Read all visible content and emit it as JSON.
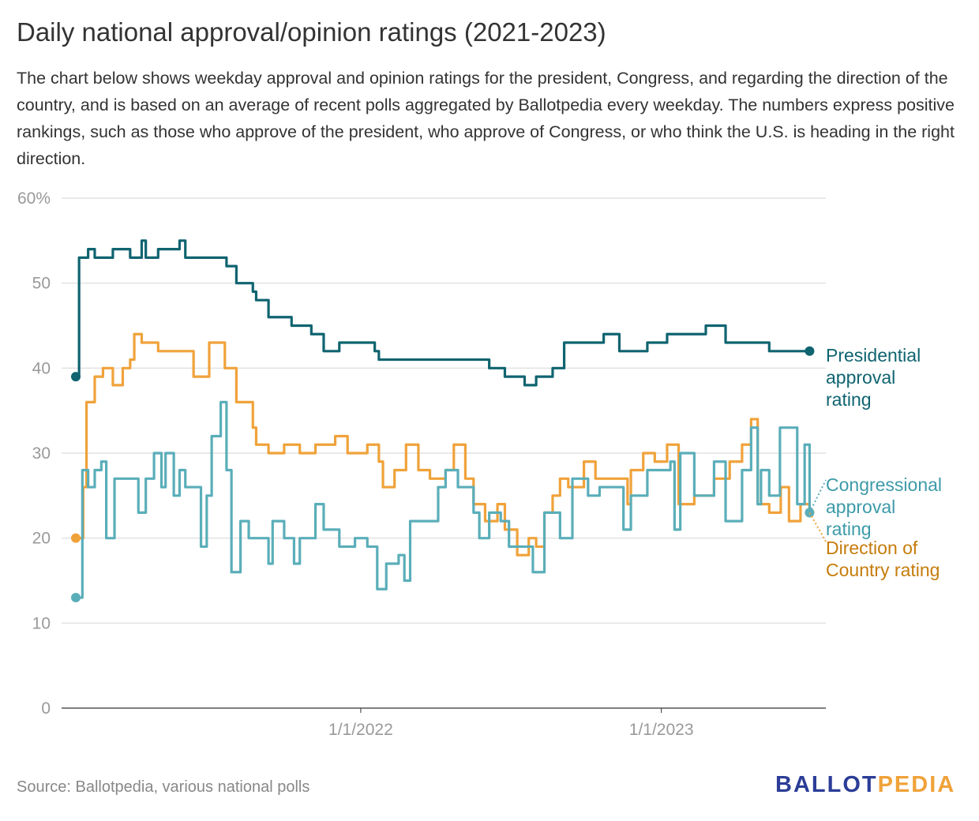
{
  "title": "Daily national approval/opinion ratings (2021-2023)",
  "description": "The chart below shows weekday approval and opinion ratings for the president, Congress, and regarding the direction of the country, and is based on an average of recent polls aggregated by Ballotpedia every weekday. The numbers express positive rankings, such as those who approve of the president, who approve of Congress, or who think the U.S. is heading in the right direction.",
  "source": "Source: Ballotpedia, various national polls",
  "logo": {
    "part1": "BALLOT",
    "part2": "PEDIA",
    "color1": "#2b3d97",
    "color2": "#f0a23a"
  },
  "chart_data": {
    "type": "line",
    "title": "Daily national approval/opinion ratings (2021-2023)",
    "ylim": [
      0,
      60
    ],
    "y_ticks": [
      0,
      10,
      20,
      30,
      40,
      50,
      60
    ],
    "y_tick_labels": [
      "0",
      "10",
      "20",
      "30",
      "40",
      "50",
      "60%"
    ],
    "x_ticks": [
      "2022-01-01",
      "2023-01-01"
    ],
    "x_tick_labels": [
      "1/1/2022",
      "1/1/2023"
    ],
    "grid": true,
    "legend": "inline-right",
    "series": [
      {
        "name": "Presidential approval rating",
        "label_lines": [
          "Presidential",
          "approval",
          "rating"
        ],
        "color": "#0f6470",
        "label_color": "#0f6470",
        "points": [
          [
            "2021-01-20",
            39
          ],
          [
            "2021-01-24",
            53
          ],
          [
            "2021-02-04",
            54
          ],
          [
            "2021-02-12",
            53
          ],
          [
            "2021-03-06",
            54
          ],
          [
            "2021-03-27",
            53
          ],
          [
            "2021-04-10",
            55
          ],
          [
            "2021-04-15",
            53
          ],
          [
            "2021-04-30",
            54
          ],
          [
            "2021-05-26",
            55
          ],
          [
            "2021-06-02",
            53
          ],
          [
            "2021-06-21",
            53
          ],
          [
            "2021-07-15",
            53
          ],
          [
            "2021-07-22",
            52
          ],
          [
            "2021-08-03",
            50
          ],
          [
            "2021-08-23",
            49
          ],
          [
            "2021-08-27",
            48
          ],
          [
            "2021-09-11",
            46
          ],
          [
            "2021-09-30",
            46
          ],
          [
            "2021-10-09",
            45
          ],
          [
            "2021-11-02",
            44
          ],
          [
            "2021-11-17",
            42
          ],
          [
            "2021-12-06",
            43
          ],
          [
            "2022-01-09",
            43
          ],
          [
            "2022-01-18",
            42
          ],
          [
            "2022-01-23",
            41
          ],
          [
            "2022-02-25",
            41
          ],
          [
            "2022-03-26",
            41
          ],
          [
            "2022-05-18",
            41
          ],
          [
            "2022-06-06",
            40
          ],
          [
            "2022-06-25",
            39
          ],
          [
            "2022-07-19",
            38
          ],
          [
            "2022-08-02",
            39
          ],
          [
            "2022-08-22",
            40
          ],
          [
            "2022-09-05",
            43
          ],
          [
            "2022-10-18",
            43
          ],
          [
            "2022-10-23",
            44
          ],
          [
            "2022-11-11",
            42
          ],
          [
            "2022-12-15",
            43
          ],
          [
            "2023-01-08",
            44
          ],
          [
            "2023-02-10",
            44
          ],
          [
            "2023-02-24",
            45
          ],
          [
            "2023-03-20",
            43
          ],
          [
            "2023-05-02",
            43
          ],
          [
            "2023-05-12",
            42
          ],
          [
            "2023-06-05",
            42
          ],
          [
            "2023-06-30",
            42
          ]
        ]
      },
      {
        "name": "Congressional approval rating",
        "label_lines": [
          "Congressional",
          "approval",
          "rating"
        ],
        "color": "#5aaeb9",
        "label_color": "#3d9aa8",
        "points": [
          [
            "2021-01-20",
            13
          ],
          [
            "2021-01-26",
            13
          ],
          [
            "2021-01-28",
            28
          ],
          [
            "2021-02-04",
            26
          ],
          [
            "2021-02-12",
            28
          ],
          [
            "2021-02-20",
            29
          ],
          [
            "2021-02-26",
            20
          ],
          [
            "2021-03-08",
            27
          ],
          [
            "2021-04-01",
            27
          ],
          [
            "2021-04-06",
            23
          ],
          [
            "2021-04-15",
            27
          ],
          [
            "2021-04-25",
            30
          ],
          [
            "2021-05-04",
            26
          ],
          [
            "2021-05-09",
            30
          ],
          [
            "2021-05-19",
            25
          ],
          [
            "2021-05-26",
            28
          ],
          [
            "2021-06-02",
            26
          ],
          [
            "2021-06-21",
            19
          ],
          [
            "2021-06-28",
            25
          ],
          [
            "2021-07-04",
            32
          ],
          [
            "2021-07-15",
            36
          ],
          [
            "2021-07-22",
            28
          ],
          [
            "2021-07-28",
            16
          ],
          [
            "2021-08-08",
            22
          ],
          [
            "2021-08-18",
            20
          ],
          [
            "2021-09-11",
            17
          ],
          [
            "2021-09-16",
            22
          ],
          [
            "2021-09-30",
            20
          ],
          [
            "2021-10-12",
            17
          ],
          [
            "2021-10-19",
            20
          ],
          [
            "2021-11-07",
            24
          ],
          [
            "2021-11-17",
            21
          ],
          [
            "2021-12-06",
            19
          ],
          [
            "2021-12-25",
            20
          ],
          [
            "2022-01-09",
            19
          ],
          [
            "2022-01-21",
            14
          ],
          [
            "2022-02-01",
            17
          ],
          [
            "2022-02-16",
            18
          ],
          [
            "2022-02-23",
            15
          ],
          [
            "2022-03-02",
            22
          ],
          [
            "2022-03-26",
            22
          ],
          [
            "2022-04-05",
            26
          ],
          [
            "2022-04-14",
            28
          ],
          [
            "2022-04-29",
            26
          ],
          [
            "2022-05-18",
            23
          ],
          [
            "2022-05-25",
            20
          ],
          [
            "2022-06-06",
            23
          ],
          [
            "2022-06-20",
            22
          ],
          [
            "2022-06-30",
            19
          ],
          [
            "2022-07-14",
            19
          ],
          [
            "2022-07-29",
            16
          ],
          [
            "2022-08-12",
            23
          ],
          [
            "2022-08-31",
            20
          ],
          [
            "2022-09-15",
            27
          ],
          [
            "2022-10-04",
            25
          ],
          [
            "2022-10-18",
            26
          ],
          [
            "2022-11-16",
            21
          ],
          [
            "2022-11-25",
            25
          ],
          [
            "2022-12-15",
            28
          ],
          [
            "2023-01-12",
            29
          ],
          [
            "2023-01-17",
            21
          ],
          [
            "2023-01-24",
            30
          ],
          [
            "2023-02-10",
            25
          ],
          [
            "2023-03-06",
            29
          ],
          [
            "2023-03-20",
            22
          ],
          [
            "2023-04-09",
            28
          ],
          [
            "2023-04-20",
            33
          ],
          [
            "2023-04-28",
            24
          ],
          [
            "2023-05-02",
            28
          ],
          [
            "2023-05-12",
            25
          ],
          [
            "2023-05-25",
            33
          ],
          [
            "2023-06-15",
            24
          ],
          [
            "2023-06-24",
            31
          ],
          [
            "2023-06-30",
            23
          ]
        ]
      },
      {
        "name": "Direction of Country rating",
        "label_lines": [
          "Direction of",
          "Country rating"
        ],
        "color": "#f0a23a",
        "label_color": "#c67c0c",
        "points": [
          [
            "2021-01-20",
            20
          ],
          [
            "2021-01-29",
            26
          ],
          [
            "2021-02-02",
            36
          ],
          [
            "2021-02-12",
            39
          ],
          [
            "2021-02-22",
            40
          ],
          [
            "2021-03-06",
            38
          ],
          [
            "2021-03-18",
            40
          ],
          [
            "2021-03-27",
            41
          ],
          [
            "2021-04-01",
            44
          ],
          [
            "2021-04-10",
            43
          ],
          [
            "2021-04-30",
            42
          ],
          [
            "2021-05-28",
            42
          ],
          [
            "2021-06-12",
            39
          ],
          [
            "2021-07-01",
            43
          ],
          [
            "2021-07-15",
            43
          ],
          [
            "2021-07-20",
            40
          ],
          [
            "2021-08-03",
            36
          ],
          [
            "2021-08-18",
            36
          ],
          [
            "2021-08-23",
            33
          ],
          [
            "2021-08-27",
            31
          ],
          [
            "2021-09-11",
            30
          ],
          [
            "2021-09-30",
            31
          ],
          [
            "2021-10-19",
            30
          ],
          [
            "2021-11-07",
            31
          ],
          [
            "2021-12-01",
            32
          ],
          [
            "2021-12-16",
            30
          ],
          [
            "2022-01-09",
            31
          ],
          [
            "2022-01-23",
            29
          ],
          [
            "2022-01-28",
            26
          ],
          [
            "2022-02-11",
            28
          ],
          [
            "2022-02-25",
            31
          ],
          [
            "2022-03-12",
            28
          ],
          [
            "2022-03-26",
            27
          ],
          [
            "2022-04-14",
            28
          ],
          [
            "2022-04-24",
            31
          ],
          [
            "2022-05-08",
            27
          ],
          [
            "2022-05-18",
            24
          ],
          [
            "2022-06-01",
            22
          ],
          [
            "2022-06-16",
            24
          ],
          [
            "2022-06-25",
            21
          ],
          [
            "2022-07-10",
            18
          ],
          [
            "2022-07-24",
            20
          ],
          [
            "2022-08-02",
            19
          ],
          [
            "2022-08-12",
            23
          ],
          [
            "2022-08-22",
            25
          ],
          [
            "2022-08-31",
            27
          ],
          [
            "2022-09-10",
            26
          ],
          [
            "2022-09-29",
            29
          ],
          [
            "2022-10-13",
            27
          ],
          [
            "2022-10-28",
            27
          ],
          [
            "2022-11-21",
            24
          ],
          [
            "2022-11-25",
            28
          ],
          [
            "2022-12-10",
            30
          ],
          [
            "2022-12-24",
            29
          ],
          [
            "2023-01-08",
            31
          ],
          [
            "2023-01-22",
            24
          ],
          [
            "2023-02-10",
            25
          ],
          [
            "2023-03-06",
            27
          ],
          [
            "2023-03-25",
            29
          ],
          [
            "2023-04-09",
            31
          ],
          [
            "2023-04-20",
            34
          ],
          [
            "2023-04-28",
            24
          ],
          [
            "2023-05-12",
            23
          ],
          [
            "2023-05-26",
            26
          ],
          [
            "2023-06-05",
            22
          ],
          [
            "2023-06-19",
            24
          ],
          [
            "2023-06-30",
            23
          ]
        ]
      }
    ]
  }
}
